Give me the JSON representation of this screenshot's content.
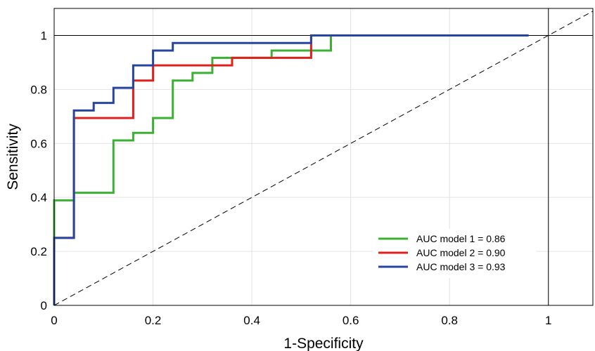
{
  "chart_data": {
    "type": "line",
    "title": "",
    "xlabel": "1-Specificity",
    "ylabel": "Sensitivity",
    "xlim": [
      0,
      1.09
    ],
    "ylim": [
      0,
      1.1
    ],
    "x_ticks": [
      0,
      0.2,
      0.4,
      0.6,
      0.8,
      1
    ],
    "y_ticks": [
      0,
      0.2,
      0.4,
      0.6,
      0.8,
      1
    ],
    "x_tick_labels": [
      "0",
      "0.2",
      "0.4",
      "0.6",
      "0.8",
      "1"
    ],
    "y_tick_labels": [
      "0",
      "0.2",
      "0.4",
      "0.6",
      "0.8",
      "1"
    ],
    "grid": true,
    "legend_position": "bottom-right",
    "reference_lines": {
      "diagonal": true,
      "horizontal_y": 1,
      "vertical_x": 1
    },
    "series": [
      {
        "name": "AUC model 1 = 0.86",
        "color": "#3cb034",
        "points": [
          [
            0,
            0
          ],
          [
            0,
            0.389
          ],
          [
            0.04,
            0.389
          ],
          [
            0.04,
            0.417
          ],
          [
            0.12,
            0.417
          ],
          [
            0.12,
            0.611
          ],
          [
            0.16,
            0.611
          ],
          [
            0.16,
            0.639
          ],
          [
            0.2,
            0.639
          ],
          [
            0.2,
            0.694
          ],
          [
            0.24,
            0.694
          ],
          [
            0.24,
            0.833
          ],
          [
            0.28,
            0.833
          ],
          [
            0.28,
            0.861
          ],
          [
            0.32,
            0.861
          ],
          [
            0.32,
            0.917
          ],
          [
            0.44,
            0.917
          ],
          [
            0.44,
            0.944
          ],
          [
            0.56,
            0.944
          ],
          [
            0.56,
            1
          ],
          [
            0.96,
            1
          ]
        ]
      },
      {
        "name": "AUC model 2 = 0.90",
        "color": "#e0201c",
        "points": [
          [
            0,
            0
          ],
          [
            0,
            0.25
          ],
          [
            0.04,
            0.25
          ],
          [
            0.04,
            0.694
          ],
          [
            0.16,
            0.694
          ],
          [
            0.16,
            0.833
          ],
          [
            0.2,
            0.833
          ],
          [
            0.2,
            0.889
          ],
          [
            0.36,
            0.889
          ],
          [
            0.36,
            0.917
          ],
          [
            0.52,
            0.917
          ],
          [
            0.52,
            1
          ],
          [
            0.96,
            1
          ]
        ]
      },
      {
        "name": "AUC model 3 = 0.93",
        "color": "#2745a0",
        "points": [
          [
            0,
            0
          ],
          [
            0,
            0.25
          ],
          [
            0.04,
            0.25
          ],
          [
            0.04,
            0.722
          ],
          [
            0.08,
            0.722
          ],
          [
            0.08,
            0.75
          ],
          [
            0.12,
            0.75
          ],
          [
            0.12,
            0.806
          ],
          [
            0.16,
            0.806
          ],
          [
            0.16,
            0.889
          ],
          [
            0.2,
            0.889
          ],
          [
            0.2,
            0.944
          ],
          [
            0.24,
            0.944
          ],
          [
            0.24,
            0.972
          ],
          [
            0.52,
            0.972
          ],
          [
            0.52,
            1
          ],
          [
            0.96,
            1
          ]
        ]
      }
    ]
  }
}
